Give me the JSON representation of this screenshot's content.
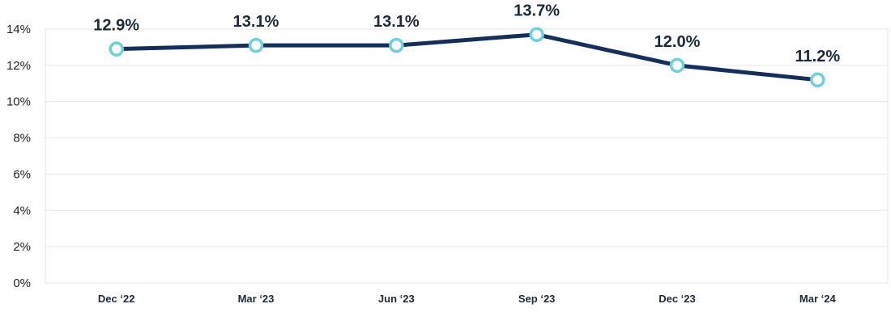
{
  "chart_data": {
    "type": "line",
    "title": "",
    "xlabel": "",
    "ylabel": "",
    "categories": [
      "Dec ‘22",
      "Mar ‘23",
      "Jun ‘23",
      "Sep ‘23",
      "Dec ‘23",
      "Mar ‘24"
    ],
    "series": [
      {
        "values": [
          12.9,
          13.1,
          13.1,
          13.7,
          12.0,
          11.2
        ]
      }
    ],
    "data_labels": [
      "12.9%",
      "13.1%",
      "13.1%",
      "13.7%",
      "12.0%",
      "11.2%"
    ],
    "y_ticks": [
      0,
      2,
      4,
      6,
      8,
      10,
      12,
      14
    ],
    "y_tick_labels": [
      "0%",
      "2%",
      "4%",
      "6%",
      "8%",
      "10%",
      "12%",
      "14%"
    ],
    "ylim": [
      0,
      14
    ],
    "grid": true,
    "legend": "none",
    "colors": {
      "line": "#14305a",
      "marker_stroke": "#6fd0dc",
      "marker_fill": "#ffffff",
      "label": "#1b2a3a",
      "grid": "#e6e6e6"
    }
  }
}
